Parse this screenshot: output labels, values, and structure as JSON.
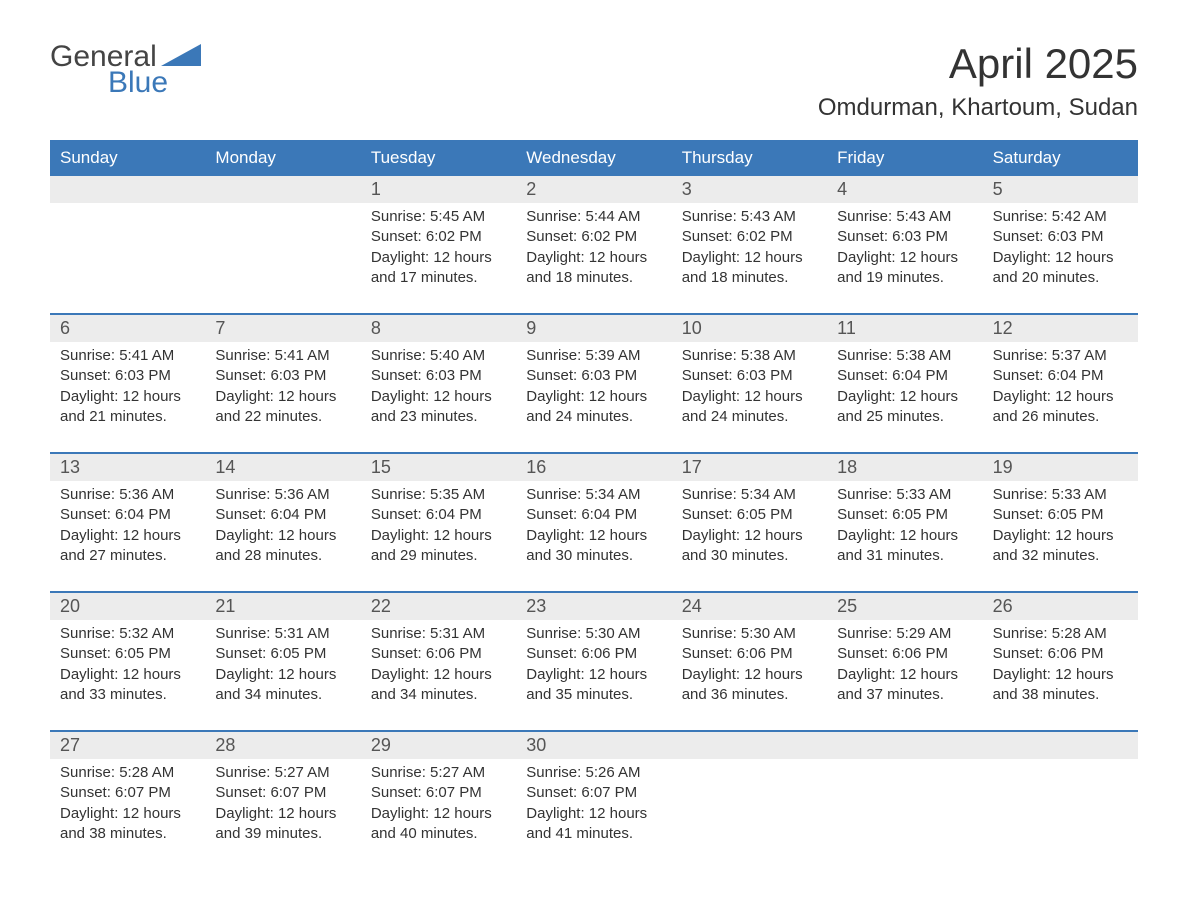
{
  "brand": {
    "word1": "General",
    "word2": "Blue",
    "accent_color": "#3b78b8"
  },
  "title": "April 2025",
  "location": "Omdurman, Khartoum, Sudan",
  "day_headers": [
    "Sunday",
    "Monday",
    "Tuesday",
    "Wednesday",
    "Thursday",
    "Friday",
    "Saturday"
  ],
  "colors": {
    "header_bg": "#3b78b8",
    "header_text": "#ffffff",
    "daynum_bg": "#ececec",
    "text": "#333333",
    "rule": "#3b78b8"
  },
  "weeks": [
    [
      null,
      null,
      {
        "n": "1",
        "sr": "Sunrise: 5:45 AM",
        "ss": "Sunset: 6:02 PM",
        "dl": "Daylight: 12 hours and 17 minutes."
      },
      {
        "n": "2",
        "sr": "Sunrise: 5:44 AM",
        "ss": "Sunset: 6:02 PM",
        "dl": "Daylight: 12 hours and 18 minutes."
      },
      {
        "n": "3",
        "sr": "Sunrise: 5:43 AM",
        "ss": "Sunset: 6:02 PM",
        "dl": "Daylight: 12 hours and 18 minutes."
      },
      {
        "n": "4",
        "sr": "Sunrise: 5:43 AM",
        "ss": "Sunset: 6:03 PM",
        "dl": "Daylight: 12 hours and 19 minutes."
      },
      {
        "n": "5",
        "sr": "Sunrise: 5:42 AM",
        "ss": "Sunset: 6:03 PM",
        "dl": "Daylight: 12 hours and 20 minutes."
      }
    ],
    [
      {
        "n": "6",
        "sr": "Sunrise: 5:41 AM",
        "ss": "Sunset: 6:03 PM",
        "dl": "Daylight: 12 hours and 21 minutes."
      },
      {
        "n": "7",
        "sr": "Sunrise: 5:41 AM",
        "ss": "Sunset: 6:03 PM",
        "dl": "Daylight: 12 hours and 22 minutes."
      },
      {
        "n": "8",
        "sr": "Sunrise: 5:40 AM",
        "ss": "Sunset: 6:03 PM",
        "dl": "Daylight: 12 hours and 23 minutes."
      },
      {
        "n": "9",
        "sr": "Sunrise: 5:39 AM",
        "ss": "Sunset: 6:03 PM",
        "dl": "Daylight: 12 hours and 24 minutes."
      },
      {
        "n": "10",
        "sr": "Sunrise: 5:38 AM",
        "ss": "Sunset: 6:03 PM",
        "dl": "Daylight: 12 hours and 24 minutes."
      },
      {
        "n": "11",
        "sr": "Sunrise: 5:38 AM",
        "ss": "Sunset: 6:04 PM",
        "dl": "Daylight: 12 hours and 25 minutes."
      },
      {
        "n": "12",
        "sr": "Sunrise: 5:37 AM",
        "ss": "Sunset: 6:04 PM",
        "dl": "Daylight: 12 hours and 26 minutes."
      }
    ],
    [
      {
        "n": "13",
        "sr": "Sunrise: 5:36 AM",
        "ss": "Sunset: 6:04 PM",
        "dl": "Daylight: 12 hours and 27 minutes."
      },
      {
        "n": "14",
        "sr": "Sunrise: 5:36 AM",
        "ss": "Sunset: 6:04 PM",
        "dl": "Daylight: 12 hours and 28 minutes."
      },
      {
        "n": "15",
        "sr": "Sunrise: 5:35 AM",
        "ss": "Sunset: 6:04 PM",
        "dl": "Daylight: 12 hours and 29 minutes."
      },
      {
        "n": "16",
        "sr": "Sunrise: 5:34 AM",
        "ss": "Sunset: 6:04 PM",
        "dl": "Daylight: 12 hours and 30 minutes."
      },
      {
        "n": "17",
        "sr": "Sunrise: 5:34 AM",
        "ss": "Sunset: 6:05 PM",
        "dl": "Daylight: 12 hours and 30 minutes."
      },
      {
        "n": "18",
        "sr": "Sunrise: 5:33 AM",
        "ss": "Sunset: 6:05 PM",
        "dl": "Daylight: 12 hours and 31 minutes."
      },
      {
        "n": "19",
        "sr": "Sunrise: 5:33 AM",
        "ss": "Sunset: 6:05 PM",
        "dl": "Daylight: 12 hours and 32 minutes."
      }
    ],
    [
      {
        "n": "20",
        "sr": "Sunrise: 5:32 AM",
        "ss": "Sunset: 6:05 PM",
        "dl": "Daylight: 12 hours and 33 minutes."
      },
      {
        "n": "21",
        "sr": "Sunrise: 5:31 AM",
        "ss": "Sunset: 6:05 PM",
        "dl": "Daylight: 12 hours and 34 minutes."
      },
      {
        "n": "22",
        "sr": "Sunrise: 5:31 AM",
        "ss": "Sunset: 6:06 PM",
        "dl": "Daylight: 12 hours and 34 minutes."
      },
      {
        "n": "23",
        "sr": "Sunrise: 5:30 AM",
        "ss": "Sunset: 6:06 PM",
        "dl": "Daylight: 12 hours and 35 minutes."
      },
      {
        "n": "24",
        "sr": "Sunrise: 5:30 AM",
        "ss": "Sunset: 6:06 PM",
        "dl": "Daylight: 12 hours and 36 minutes."
      },
      {
        "n": "25",
        "sr": "Sunrise: 5:29 AM",
        "ss": "Sunset: 6:06 PM",
        "dl": "Daylight: 12 hours and 37 minutes."
      },
      {
        "n": "26",
        "sr": "Sunrise: 5:28 AM",
        "ss": "Sunset: 6:06 PM",
        "dl": "Daylight: 12 hours and 38 minutes."
      }
    ],
    [
      {
        "n": "27",
        "sr": "Sunrise: 5:28 AM",
        "ss": "Sunset: 6:07 PM",
        "dl": "Daylight: 12 hours and 38 minutes."
      },
      {
        "n": "28",
        "sr": "Sunrise: 5:27 AM",
        "ss": "Sunset: 6:07 PM",
        "dl": "Daylight: 12 hours and 39 minutes."
      },
      {
        "n": "29",
        "sr": "Sunrise: 5:27 AM",
        "ss": "Sunset: 6:07 PM",
        "dl": "Daylight: 12 hours and 40 minutes."
      },
      {
        "n": "30",
        "sr": "Sunrise: 5:26 AM",
        "ss": "Sunset: 6:07 PM",
        "dl": "Daylight: 12 hours and 41 minutes."
      },
      null,
      null,
      null
    ]
  ]
}
